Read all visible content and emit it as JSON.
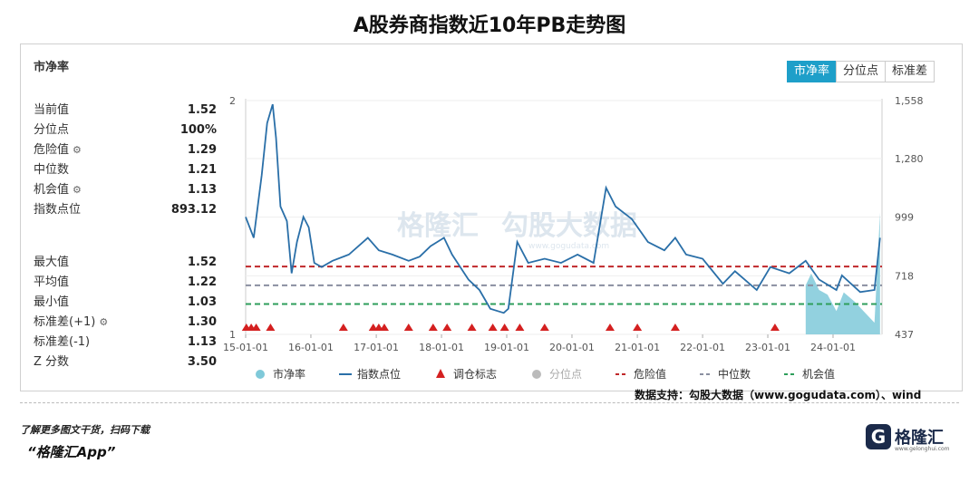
{
  "title": "A股券商指数近10年PB走势图",
  "panel": {
    "label": "市净率",
    "tabs": [
      {
        "label": "市净率",
        "active": true
      },
      {
        "label": "分位点",
        "active": false
      },
      {
        "label": "标准差",
        "active": false
      }
    ],
    "stats_top": [
      {
        "label": "当前值",
        "value": "1.52",
        "gear": false
      },
      {
        "label": "分位点",
        "value": "100%",
        "gear": false
      },
      {
        "label": "危险值",
        "value": "1.29",
        "gear": true
      },
      {
        "label": "中位数",
        "value": "1.21",
        "gear": false
      },
      {
        "label": "机会值",
        "value": "1.13",
        "gear": true
      },
      {
        "label": "指数点位",
        "value": "893.12",
        "gear": false
      }
    ],
    "stats_bottom": [
      {
        "label": "最大值",
        "value": "1.52",
        "gear": false
      },
      {
        "label": "平均值",
        "value": "1.22",
        "gear": false
      },
      {
        "label": "最小值",
        "value": "1.03",
        "gear": false
      },
      {
        "label": "标准差(+1)",
        "value": "1.30",
        "gear": true
      },
      {
        "label": "标准差(-1)",
        "value": "1.13",
        "gear": false
      },
      {
        "label": "Z 分数",
        "value": "3.50",
        "gear": false
      }
    ]
  },
  "watermark": {
    "brand": "格隆汇",
    "brand2": "勾股大数据",
    "site": "www.gogudata.com"
  },
  "data_source": "数据支持：勾股大数据（www.gogudata.com）、wind",
  "promo": {
    "line1": "了解更多图文干货，扫码下载",
    "line2": "“格隆汇App”"
  },
  "logo": {
    "text": "格隆汇",
    "sub": "www.gelonghui.com"
  },
  "colors": {
    "accent": "#1e9fc9",
    "index_line": "#2a6fa8",
    "pb_area": "#7fc9d9",
    "danger": "#c0282a",
    "median": "#8a8fa0",
    "opportunity": "#2e9e5b",
    "marker": "#d42020"
  },
  "chart_data": {
    "type": "line",
    "x_ticks": [
      "15-01-01",
      "16-01-01",
      "17-01-01",
      "18-01-01",
      "19-01-01",
      "20-01-01",
      "21-01-01",
      "22-01-01",
      "23-01-01",
      "24-01-01"
    ],
    "y_left": {
      "ticks": [
        "2",
        "1"
      ],
      "range": [
        1,
        2
      ]
    },
    "y_right": {
      "ticks": [
        "1,558",
        "1,280",
        "999",
        "718",
        "437"
      ],
      "range": [
        437,
        1558
      ]
    },
    "legend": [
      {
        "name": "市净率",
        "kind": "dot",
        "color": "#7fc9d9"
      },
      {
        "name": "指数点位",
        "kind": "line",
        "color": "#2a6fa8"
      },
      {
        "name": "调仓标志",
        "kind": "triangle",
        "color": "#d42020"
      },
      {
        "name": "分位点",
        "kind": "dot",
        "color": "#bbbbbb"
      },
      {
        "name": "危险值",
        "kind": "dash",
        "color": "#c0282a"
      },
      {
        "name": "中位数",
        "kind": "dash",
        "color": "#8a8fa0"
      },
      {
        "name": "机会值",
        "kind": "dash",
        "color": "#2e9e5b"
      }
    ],
    "reference_lines": {
      "danger": 1.29,
      "median": 1.21,
      "opportunity": 1.13
    },
    "index_series": [
      [
        "2015-01-01",
        1000
      ],
      [
        "2015-02-15",
        900
      ],
      [
        "2015-04-01",
        1200
      ],
      [
        "2015-05-01",
        1450
      ],
      [
        "2015-06-01",
        1540
      ],
      [
        "2015-06-20",
        1380
      ],
      [
        "2015-07-15",
        1050
      ],
      [
        "2015-08-20",
        980
      ],
      [
        "2015-09-15",
        730
      ],
      [
        "2015-10-15",
        880
      ],
      [
        "2015-11-20",
        1000
      ],
      [
        "2015-12-20",
        950
      ],
      [
        "2016-01-20",
        780
      ],
      [
        "2016-03-01",
        760
      ],
      [
        "2016-05-01",
        790
      ],
      [
        "2016-08-01",
        820
      ],
      [
        "2016-11-15",
        900
      ],
      [
        "2017-01-15",
        840
      ],
      [
        "2017-04-01",
        820
      ],
      [
        "2017-07-01",
        790
      ],
      [
        "2017-09-01",
        810
      ],
      [
        "2017-11-01",
        860
      ],
      [
        "2018-01-15",
        900
      ],
      [
        "2018-03-01",
        820
      ],
      [
        "2018-06-01",
        700
      ],
      [
        "2018-08-01",
        650
      ],
      [
        "2018-10-01",
        560
      ],
      [
        "2018-12-15",
        540
      ],
      [
        "2019-01-10",
        560
      ],
      [
        "2019-03-01",
        880
      ],
      [
        "2019-05-01",
        780
      ],
      [
        "2019-08-01",
        800
      ],
      [
        "2019-11-01",
        780
      ],
      [
        "2020-02-01",
        820
      ],
      [
        "2020-05-01",
        780
      ],
      [
        "2020-07-10",
        1140
      ],
      [
        "2020-09-01",
        1050
      ],
      [
        "2020-12-01",
        990
      ],
      [
        "2021-03-01",
        880
      ],
      [
        "2021-06-01",
        840
      ],
      [
        "2021-08-01",
        900
      ],
      [
        "2021-10-01",
        820
      ],
      [
        "2022-01-01",
        800
      ],
      [
        "2022-04-25",
        680
      ],
      [
        "2022-07-01",
        740
      ],
      [
        "2022-10-31",
        650
      ],
      [
        "2023-01-15",
        760
      ],
      [
        "2023-05-01",
        730
      ],
      [
        "2023-08-01",
        790
      ],
      [
        "2023-10-15",
        700
      ],
      [
        "2024-01-20",
        650
      ],
      [
        "2024-02-20",
        720
      ],
      [
        "2024-06-01",
        640
      ],
      [
        "2024-08-20",
        650
      ],
      [
        "2024-09-20",
        900
      ]
    ],
    "pb_area": [
      [
        "2023-08-01",
        1.21
      ],
      [
        "2023-09-01",
        1.26
      ],
      [
        "2023-10-15",
        1.19
      ],
      [
        "2023-12-01",
        1.17
      ],
      [
        "2024-01-20",
        1.1
      ],
      [
        "2024-03-01",
        1.18
      ],
      [
        "2024-05-01",
        1.14
      ],
      [
        "2024-07-01",
        1.09
      ],
      [
        "2024-08-20",
        1.05
      ],
      [
        "2024-09-20",
        1.52
      ]
    ],
    "markers": [
      "2015-01-05",
      "2015-02-01",
      "2015-03-01",
      "2015-05-20",
      "2016-07-01",
      "2016-12-15",
      "2017-01-15",
      "2017-02-15",
      "2017-07-01",
      "2017-11-15",
      "2018-02-01",
      "2018-06-20",
      "2018-10-15",
      "2018-12-20",
      "2019-03-15",
      "2019-08-01",
      "2020-08-01",
      "2021-01-01",
      "2021-08-01",
      "2023-02-10"
    ]
  }
}
